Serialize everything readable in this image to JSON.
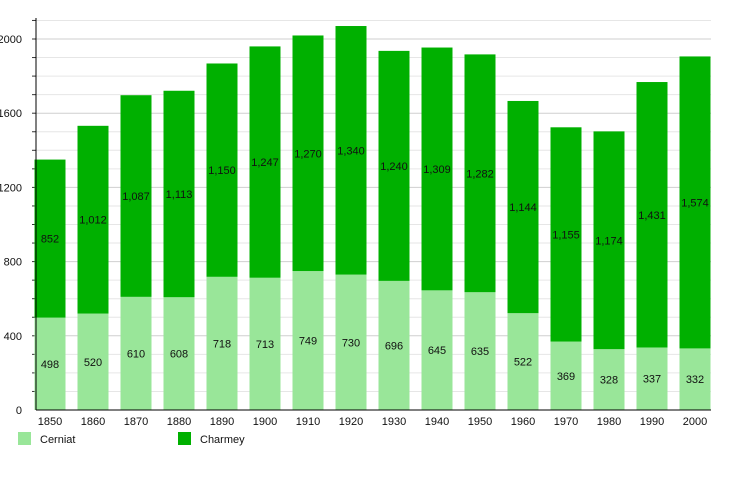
{
  "chart_data": {
    "type": "bar",
    "stacked": true,
    "categories": [
      "1850",
      "1860",
      "1870",
      "1880",
      "1890",
      "1900",
      "1910",
      "1920",
      "1930",
      "1940",
      "1950",
      "1960",
      "1970",
      "1980",
      "1990",
      "2000"
    ],
    "series": [
      {
        "name": "Cerniat",
        "color": "#99e699",
        "values": [
          498,
          520,
          610,
          608,
          718,
          713,
          749,
          730,
          696,
          645,
          635,
          522,
          369,
          328,
          337,
          332
        ]
      },
      {
        "name": "Charmey",
        "color": "#00b000",
        "values": [
          852,
          1012,
          1087,
          1113,
          1150,
          1247,
          1270,
          1340,
          1240,
          1309,
          1282,
          1144,
          1155,
          1174,
          1431,
          1574
        ]
      }
    ],
    "ylim": [
      0,
      2000
    ],
    "yticks": [
      "0",
      "400",
      "800",
      "1200",
      "1600",
      "2000"
    ],
    "grid": true,
    "legend": "bottom-left"
  }
}
